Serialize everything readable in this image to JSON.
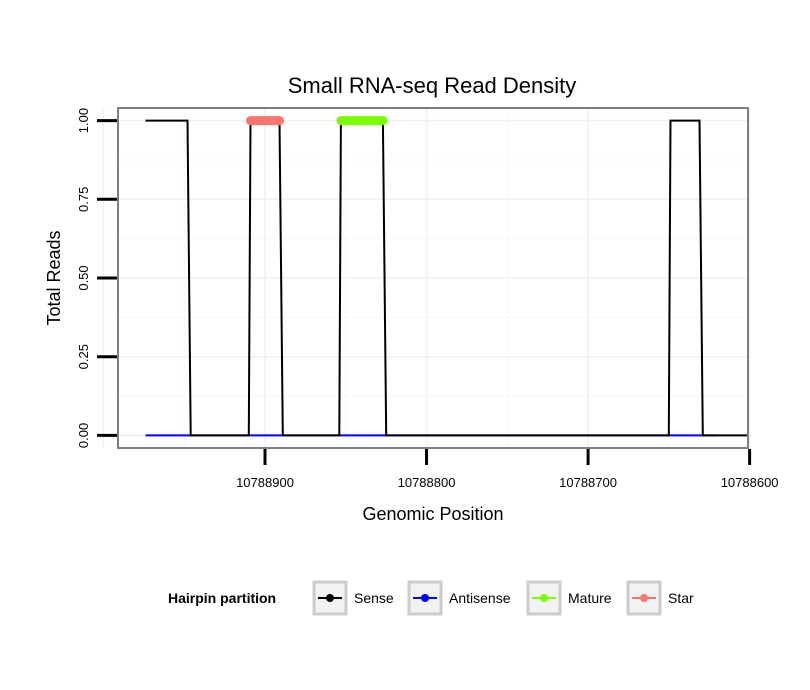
{
  "chart_data": {
    "type": "line",
    "title": "Small RNA-seq Read Density",
    "xlabel": "Genomic Position",
    "ylabel": "Total Reads",
    "x_reversed": true,
    "xlim": [
      10788601,
      10788991
    ],
    "ylim": [
      -0.04,
      1.04
    ],
    "x_ticks": [
      10788900,
      10788800,
      10788700,
      10788600
    ],
    "x_tick_labels": [
      "10788900",
      "10788800",
      "10788700",
      "10788600"
    ],
    "y_ticks": [
      0,
      0.25,
      0.5,
      0.75,
      1.0
    ],
    "y_tick_labels": [
      "0.00",
      "0.25",
      "0.50",
      "0.75",
      "1.00"
    ],
    "grid": true,
    "legend": {
      "title": "Hairpin partition",
      "position": "bottom",
      "entries": [
        {
          "label": "Sense",
          "color": "#000000"
        },
        {
          "label": "Antisense",
          "color": "#0000ff"
        },
        {
          "label": "Mature",
          "color": "#7cfc00"
        },
        {
          "label": "Star",
          "color": "#f8766d"
        }
      ]
    },
    "series": [
      {
        "name": "Sense",
        "color": "#000000",
        "points": [
          [
            10788974,
            1
          ],
          [
            10788948,
            1
          ],
          [
            10788946,
            0
          ],
          [
            10788910,
            0
          ],
          [
            10788909,
            1
          ],
          [
            10788891,
            1
          ],
          [
            10788889,
            0
          ],
          [
            10788854,
            0
          ],
          [
            10788853,
            1
          ],
          [
            10788827,
            1
          ],
          [
            10788825,
            0
          ],
          [
            10788650,
            0
          ],
          [
            10788649,
            1
          ],
          [
            10788631,
            1
          ],
          [
            10788629,
            0
          ],
          [
            10788601,
            0
          ]
        ]
      },
      {
        "name": "Antisense",
        "color": "#0000ff",
        "points": [
          [
            10788974,
            0
          ],
          [
            10788620,
            0
          ]
        ]
      },
      {
        "name": "Star",
        "color": "#f8766d",
        "segments": [
          [
            10788909,
            10788891
          ]
        ],
        "y": 1
      },
      {
        "name": "Mature",
        "color": "#7cfc00",
        "segments": [
          [
            10788853,
            10788827
          ]
        ],
        "y": 1
      }
    ]
  }
}
